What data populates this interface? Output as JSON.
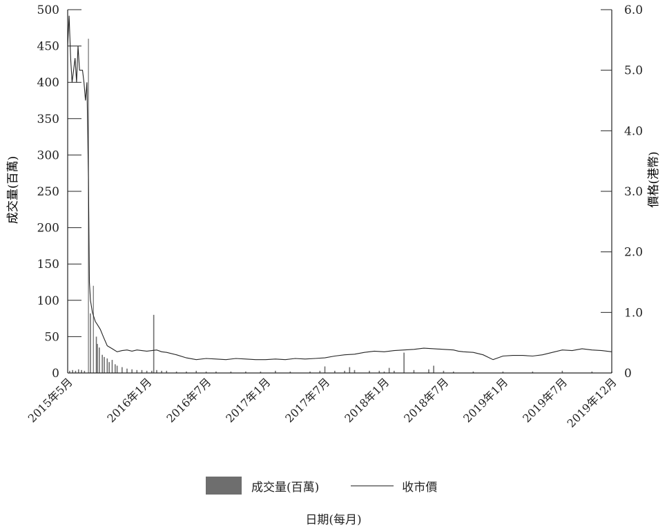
{
  "chart_data": {
    "type": "bar+line",
    "xlabel": "日期(每月)",
    "ylabel_left": "成交量(百萬)",
    "ylabel_right": "價格(港幣)",
    "ylim_left": [
      0,
      500
    ],
    "ylim_right": [
      0,
      6.0
    ],
    "yticks_left": [
      "0",
      "50",
      "100",
      "150",
      "200",
      "250",
      "300",
      "350",
      "400",
      "450",
      "500"
    ],
    "yticks_right": [
      "0",
      "1.0",
      "2.0",
      "3.0",
      "4.0",
      "5.0",
      "6.0"
    ],
    "x_ticks": [
      "2015年5月",
      "2016年1月",
      "2016年7月",
      "2017年1月",
      "2017年7月",
      "2018年1月",
      "2018年7月",
      "2019年1月",
      "2019年7月",
      "2019年12月"
    ],
    "x_range_months": [
      "2015-05",
      "2019-12"
    ],
    "grid": false,
    "legend_position": "bottom",
    "series": [
      {
        "name": "成交量(百萬)",
        "type": "bar",
        "axis": "left",
        "color": "#6e6e6e",
        "x_months": [
          0.2,
          0.5,
          0.8,
          1.1,
          1.4,
          1.7,
          2.1,
          2.3,
          2.6,
          2.9,
          3.0,
          3.2,
          3.5,
          3.7,
          4.0,
          4.2,
          4.5,
          4.8,
          5.0,
          5.5,
          6.0,
          6.5,
          7.0,
          7.5,
          8.0,
          8.5,
          8.7,
          9.0,
          9.5,
          10.0,
          11.0,
          12.0,
          13.0,
          14.0,
          15.0,
          16.5,
          18.0,
          19.5,
          21.0,
          22.5,
          24.5,
          25.5,
          26.0,
          27.0,
          28.0,
          28.5,
          29.0,
          30.5,
          31.5,
          32.0,
          32.5,
          33.0,
          34.0,
          35.0,
          36.5,
          37.0,
          38.0,
          39.0,
          41.0,
          44.0,
          47.0,
          50.0,
          53.0,
          55.0
        ],
        "values": [
          3,
          4,
          3,
          5,
          4,
          3,
          460,
          82,
          120,
          50,
          40,
          35,
          25,
          22,
          20,
          15,
          18,
          12,
          10,
          8,
          6,
          5,
          4,
          4,
          3,
          3,
          80,
          4,
          3,
          3,
          2,
          2,
          3,
          2,
          2,
          2,
          2,
          2,
          3,
          2,
          2,
          3,
          9,
          3,
          3,
          8,
          4,
          3,
          3,
          2,
          7,
          3,
          28,
          4,
          5,
          10,
          3,
          2,
          2,
          2,
          2,
          3,
          2,
          2
        ]
      },
      {
        "name": "收市價",
        "type": "line",
        "axis": "right",
        "color": "#222222",
        "x_months": [
          0,
          0.15,
          0.3,
          0.45,
          0.6,
          0.75,
          0.9,
          1.05,
          1.2,
          1.35,
          1.5,
          1.65,
          1.8,
          1.95,
          2.1,
          2.2,
          2.3,
          2.5,
          2.8,
          3.0,
          3.3,
          3.6,
          4.0,
          4.5,
          5.0,
          5.5,
          6.0,
          6.5,
          7.0,
          7.5,
          8.0,
          8.5,
          9.0,
          9.5,
          10.0,
          11.0,
          12.0,
          13.0,
          14.0,
          15.0,
          16.0,
          17.0,
          18.0,
          19.0,
          20.0,
          21.0,
          22.0,
          23.0,
          24.0,
          25.0,
          26.0,
          27.0,
          28.0,
          29.0,
          30.0,
          31.0,
          32.0,
          33.0,
          34.0,
          35.0,
          36.0,
          37.0,
          38.0,
          39.0,
          39.5,
          40.0,
          41.0,
          42.0,
          43.0,
          44.0,
          45.0,
          46.0,
          47.0,
          48.0,
          49.0,
          50.0,
          51.0,
          52.0,
          53.0,
          54.0,
          55.0
        ],
        "values": [
          5.4,
          5.9,
          5.2,
          4.8,
          5.0,
          5.2,
          4.8,
          5.4,
          5.0,
          5.0,
          5.0,
          4.8,
          4.5,
          4.8,
          3.2,
          1.5,
          1.2,
          1.0,
          0.85,
          0.8,
          0.72,
          0.6,
          0.45,
          0.4,
          0.35,
          0.37,
          0.38,
          0.36,
          0.38,
          0.37,
          0.36,
          0.37,
          0.38,
          0.35,
          0.34,
          0.3,
          0.25,
          0.22,
          0.24,
          0.23,
          0.22,
          0.24,
          0.23,
          0.22,
          0.22,
          0.23,
          0.22,
          0.24,
          0.23,
          0.24,
          0.25,
          0.28,
          0.3,
          0.31,
          0.34,
          0.36,
          0.35,
          0.37,
          0.38,
          0.39,
          0.41,
          0.4,
          0.39,
          0.38,
          0.36,
          0.35,
          0.34,
          0.3,
          0.22,
          0.28,
          0.29,
          0.29,
          0.28,
          0.3,
          0.34,
          0.38,
          0.37,
          0.4,
          0.38,
          0.37,
          0.35
        ]
      }
    ]
  }
}
